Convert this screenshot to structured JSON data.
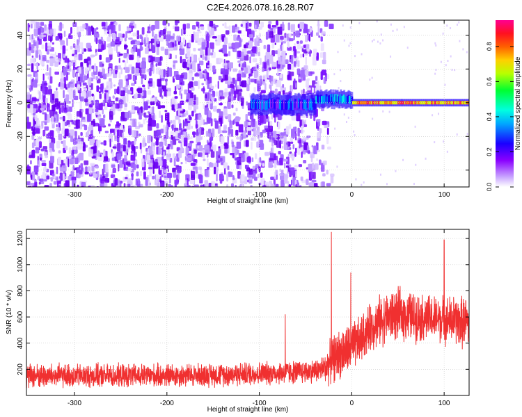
{
  "figure": {
    "title": "C2E4.2026.078.16.28.R07"
  },
  "chart_data": [
    {
      "type": "heatmap",
      "xlabel": "Height of straight line (km)",
      "ylabel": "Frequency (Hz)",
      "xlim": [
        -352,
        127
      ],
      "ylim": [
        -50,
        49
      ],
      "x_ticks": [
        -300,
        -200,
        -100,
        0,
        100
      ],
      "y_ticks": [
        -40,
        -20,
        0,
        20,
        40
      ],
      "colorbar": {
        "label": "Normalized spectral amplitude",
        "range": [
          0,
          0.95
        ],
        "ticks": [
          0.0,
          0.2,
          0.4,
          0.6,
          0.8
        ],
        "colors": [
          "#ffffff",
          "#8a00ff",
          "#1a00ff",
          "#00e5ff",
          "#00ff40",
          "#c8ff00",
          "#ffb000",
          "#ff2000",
          "#ff0080"
        ]
      },
      "grid": true,
      "description_of_field": "noise speckle for x < -30 km; narrow band near 0 Hz from about -110 km rising in amplitude to a high-amplitude line for x > 0 km"
    },
    {
      "type": "line",
      "xlabel": "Height of straight line (km)",
      "ylabel": "SNR (10 * v/v)",
      "xlim": [
        -352,
        127
      ],
      "ylim": [
        0,
        1270
      ],
      "x_ticks": [
        -300,
        -200,
        -100,
        0,
        100
      ],
      "y_ticks": [
        200,
        400,
        600,
        800,
        1000,
        1200
      ],
      "color": "#f03030",
      "grid": true,
      "series": [
        {
          "x": [
            -352,
            -300,
            -250,
            -200,
            -150,
            -100,
            -60,
            -40,
            -30,
            -25,
            -20,
            -15,
            -10,
            -5,
            0,
            10,
            20,
            30,
            40,
            50,
            60,
            70,
            80,
            90,
            100,
            110,
            120,
            127
          ],
          "baseline": [
            150,
            150,
            150,
            152,
            158,
            168,
            178,
            188,
            205,
            240,
            280,
            310,
            330,
            340,
            360,
            430,
            520,
            570,
            600,
            620,
            610,
            600,
            590,
            585,
            580,
            575,
            560,
            560
          ],
          "amplitude": [
            160,
            150,
            150,
            150,
            150,
            150,
            150,
            150,
            170,
            260,
            300,
            310,
            320,
            330,
            320,
            300,
            300,
            320,
            330,
            330,
            320,
            310,
            300,
            300,
            300,
            310,
            330,
            330
          ],
          "spikes": [
            {
              "x": -22,
              "y": 1250
            },
            {
              "x": 100,
              "y": 1190
            },
            {
              "x": -72,
              "y": 620
            },
            {
              "x": -1,
              "y": 940
            }
          ]
        }
      ]
    }
  ]
}
